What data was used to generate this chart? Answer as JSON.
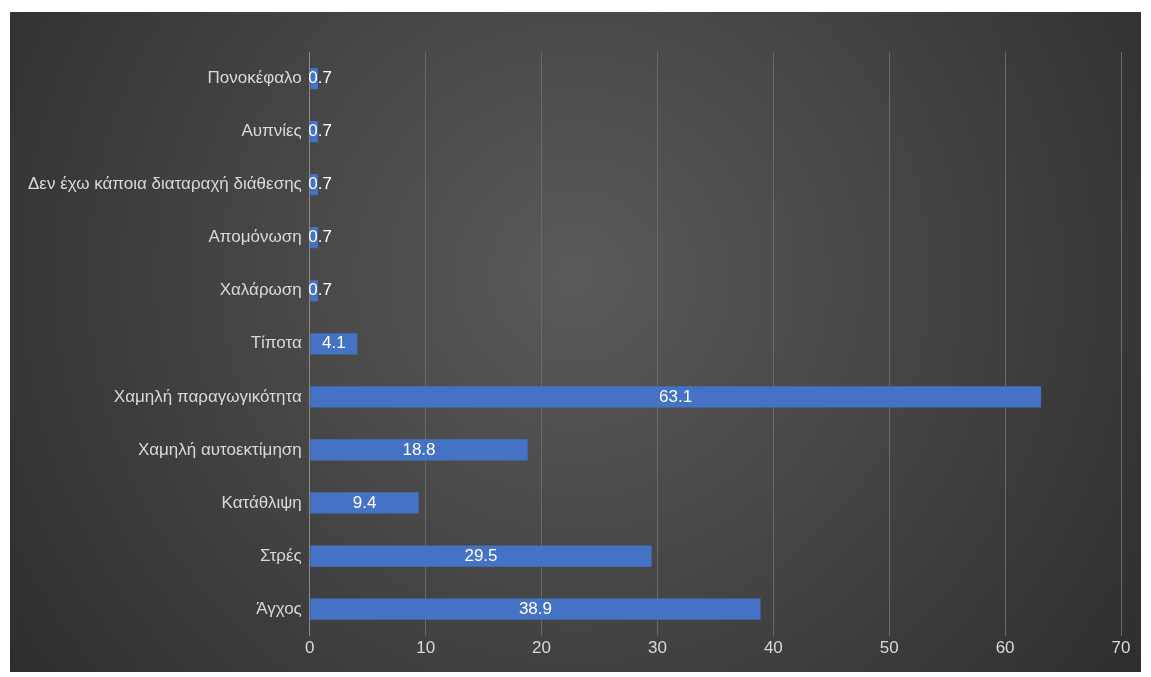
{
  "chart_data": {
    "type": "bar",
    "orientation": "horizontal",
    "categories": [
      "Πονοκέφαλο",
      "Αυπνίες",
      "Δεν έχω κάποια διαταραχή διάθεσης",
      "Απομόνωση",
      "Χαλάρωση",
      "Τίποτα",
      "Χαμηλή παραγωγικότητα",
      "Χαμηλή αυτοεκτίμηση",
      "Κατάθλιψη",
      "Στρές",
      "Άγχος"
    ],
    "values": [
      0.7,
      0.7,
      0.7,
      0.7,
      0.7,
      4.1,
      63.1,
      18.8,
      9.4,
      29.5,
      38.9
    ],
    "color": "#4472c4",
    "xlim": [
      0,
      70
    ],
    "xticks": [
      0,
      10,
      20,
      30,
      40,
      50,
      60,
      70
    ],
    "grid": "x",
    "data_labels": true
  }
}
